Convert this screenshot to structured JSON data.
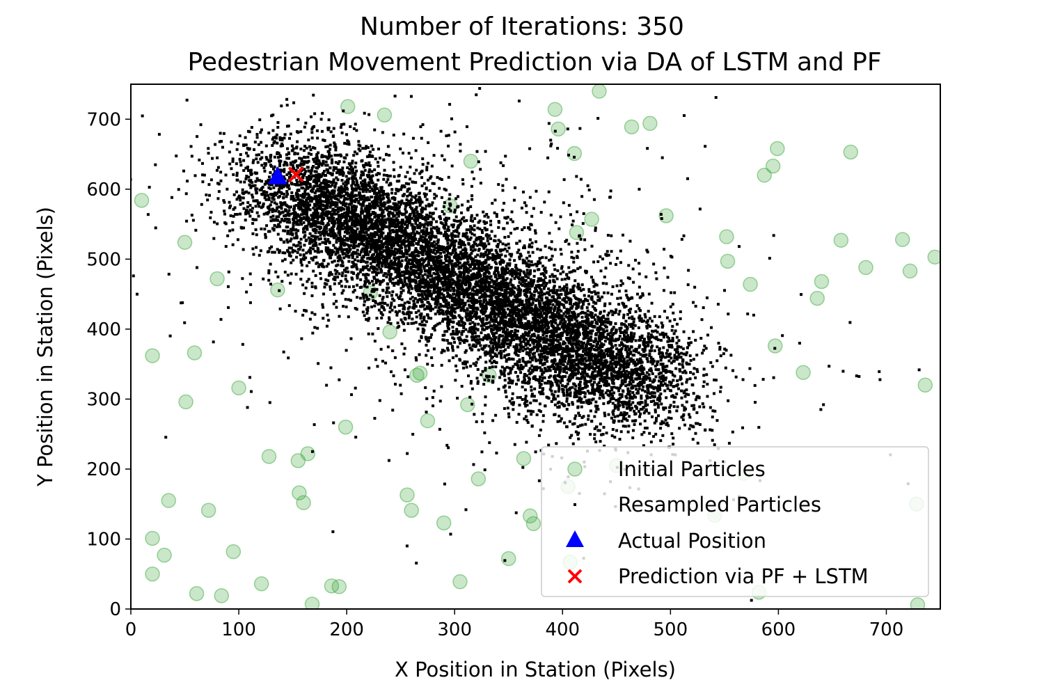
{
  "chart_data": {
    "type": "scatter",
    "title": "Number of Iterations: 350",
    "subtitle": "Pedestrian Movement Prediction via DA of LSTM and PF",
    "xlabel": "X Position in Station (Pixels)",
    "ylabel": "Y Position in Station (Pixels)",
    "xlim": [
      0,
      750
    ],
    "ylim": [
      0,
      750
    ],
    "xticks": [
      0,
      100,
      200,
      300,
      400,
      500,
      600,
      700
    ],
    "yticks": [
      0,
      100,
      200,
      300,
      400,
      500,
      600,
      700
    ],
    "grid": false,
    "legend_position": "lower-right",
    "legend": [
      {
        "label": "Initial Particles",
        "marker": "circle",
        "color": "#2ca02c"
      },
      {
        "label": "Resampled Particles",
        "marker": "square",
        "color": "#000000"
      },
      {
        "label": "Actual Position",
        "marker": "triangle",
        "color": "#0000ff"
      },
      {
        "label": "Prediction via PF + LSTM",
        "marker": "x",
        "color": "#ff0000"
      }
    ],
    "series": [
      {
        "name": "Initial Particles",
        "marker": "circle",
        "color": "#2ca02c",
        "alpha": 0.25,
        "points": [
          [
            10,
            584
          ],
          [
            20,
            362
          ],
          [
            50,
            524
          ],
          [
            51,
            296
          ],
          [
            59,
            366
          ],
          [
            80,
            472
          ],
          [
            100,
            316
          ],
          [
            128,
            218
          ],
          [
            136,
            456
          ],
          [
            155,
            212
          ],
          [
            156,
            166
          ],
          [
            160,
            152
          ],
          [
            164,
            222
          ],
          [
            20,
            101
          ],
          [
            20,
            50
          ],
          [
            31,
            77
          ],
          [
            35,
            155
          ],
          [
            61,
            22
          ],
          [
            72,
            141
          ],
          [
            84,
            19
          ],
          [
            95,
            82
          ],
          [
            121,
            36
          ],
          [
            168,
            7
          ],
          [
            186,
            33
          ],
          [
            193,
            32
          ],
          [
            199,
            260
          ],
          [
            201,
            718
          ],
          [
            235,
            706
          ],
          [
            240,
            396
          ],
          [
            256,
            163
          ],
          [
            260,
            141
          ],
          [
            265,
            334
          ],
          [
            268,
            337
          ],
          [
            275,
            269
          ],
          [
            290,
            123
          ],
          [
            305,
            39
          ],
          [
            312,
            292
          ],
          [
            315,
            640
          ],
          [
            322,
            186
          ],
          [
            350,
            72
          ],
          [
            364,
            215
          ],
          [
            370,
            133
          ],
          [
            373,
            122
          ],
          [
            393,
            714
          ],
          [
            396,
            686
          ],
          [
            405,
            175
          ],
          [
            407,
            67
          ],
          [
            411,
            651
          ],
          [
            413,
            538
          ],
          [
            427,
            557
          ],
          [
            434,
            740
          ],
          [
            450,
            205
          ],
          [
            464,
            689
          ],
          [
            481,
            694
          ],
          [
            496,
            562
          ],
          [
            541,
            134
          ],
          [
            552,
            532
          ],
          [
            553,
            497
          ],
          [
            568,
            194
          ],
          [
            574,
            464
          ],
          [
            582,
            24
          ],
          [
            587,
            620
          ],
          [
            595,
            633
          ],
          [
            597,
            376
          ],
          [
            599,
            658
          ],
          [
            636,
            444
          ],
          [
            640,
            468
          ],
          [
            623,
            338
          ],
          [
            658,
            527
          ],
          [
            667,
            653
          ],
          [
            681,
            488
          ],
          [
            715,
            528
          ],
          [
            722,
            483
          ],
          [
            728,
            150
          ],
          [
            729,
            6
          ],
          [
            736,
            320
          ],
          [
            745,
            503
          ],
          [
            222,
            452
          ],
          [
            332,
            334
          ],
          [
            296,
            576
          ]
        ]
      },
      {
        "name": "Resampled Particles",
        "marker": "square",
        "color": "#000000",
        "generated": true,
        "count": 9500,
        "distribution_center_x_range": [
          140,
          480
        ],
        "distribution_center_y_range": [
          310,
          620
        ],
        "scattered_count": 800
      },
      {
        "name": "Actual Position",
        "marker": "triangle",
        "color": "#0000ff",
        "points": [
          [
            136,
            618
          ]
        ]
      },
      {
        "name": "Prediction via PF + LSTM",
        "marker": "x",
        "color": "#ff0000",
        "points": [
          [
            153,
            621
          ]
        ]
      }
    ]
  }
}
